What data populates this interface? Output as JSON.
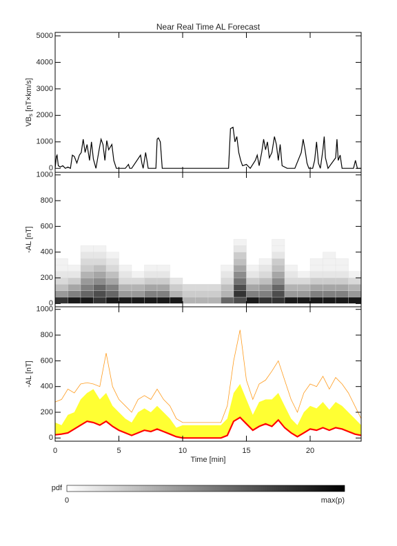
{
  "chart_data": [
    {
      "type": "line",
      "title": "Near Real Time AL Forecast",
      "ylabel": {
        "main": "VB",
        "sub": "s",
        "unit": " [nT×km/s]"
      },
      "xlim": [
        0,
        24
      ],
      "xticks": [
        0,
        5,
        10,
        15,
        20
      ],
      "ylim": [
        -150,
        5130
      ],
      "yticks": [
        0,
        1000,
        2000,
        3000,
        4000,
        5000
      ],
      "color": "#000000",
      "x": [
        0,
        0.1,
        0.15,
        0.25,
        0.4,
        0.6,
        0.8,
        1,
        1.2,
        1.35,
        1.5,
        1.7,
        1.9,
        2.05,
        2.2,
        2.35,
        2.5,
        2.7,
        2.85,
        3,
        3.2,
        3.45,
        3.6,
        3.75,
        3.9,
        4.05,
        4.2,
        4.45,
        4.6,
        4.8,
        5.5,
        5.75,
        5.85,
        6,
        6.7,
        6.8,
        6.9,
        7.1,
        7.2,
        7.3,
        7.9,
        8.0,
        8.1,
        8.25,
        8.4,
        13.6,
        13.75,
        13.95,
        14.1,
        14.25,
        14.4,
        14.55,
        14.7,
        15,
        15.3,
        15.7,
        15.85,
        16,
        16.2,
        16.35,
        16.5,
        16.65,
        16.8,
        17,
        17.2,
        17.35,
        17.5,
        17.65,
        17.8,
        18.2,
        18.8,
        19.3,
        19.45,
        19.6,
        19.75,
        19.9,
        20.2,
        20.35,
        20.5,
        20.65,
        20.8,
        21,
        21.1,
        21.2,
        21.4,
        22.0,
        22.1,
        22.2,
        22.35,
        22.5,
        23.4,
        23.55,
        23.7,
        24
      ],
      "values": [
        0,
        450,
        500,
        100,
        50,
        100,
        0,
        50,
        0,
        500,
        450,
        200,
        500,
        600,
        1100,
        600,
        900,
        300,
        1000,
        350,
        0,
        700,
        1100,
        900,
        300,
        1050,
        700,
        900,
        300,
        0,
        0,
        150,
        0,
        0,
        500,
        200,
        0,
        600,
        300,
        0,
        0,
        1100,
        1150,
        1000,
        0,
        0,
        1500,
        1550,
        1000,
        1200,
        600,
        300,
        100,
        150,
        0,
        300,
        500,
        100,
        600,
        1100,
        700,
        1000,
        400,
        600,
        1200,
        900,
        300,
        900,
        100,
        0,
        0,
        600,
        1100,
        700,
        200,
        0,
        0,
        300,
        1000,
        200,
        0,
        700,
        1200,
        400,
        0,
        400,
        1100,
        300,
        500,
        0,
        0,
        300,
        0,
        0
      ]
    },
    {
      "type": "heatmap",
      "ylabel": "-AL [nT]",
      "xlim": [
        0,
        24
      ],
      "xticks": [
        0,
        5,
        10,
        15,
        20
      ],
      "ylim": [
        -25,
        1020
      ],
      "yticks": [
        0,
        200,
        400,
        600,
        800,
        1000
      ],
      "x_bins": [
        0,
        1,
        2,
        3,
        4,
        5,
        6,
        7,
        8,
        9,
        10,
        11,
        12,
        13,
        14,
        15,
        16,
        17,
        18,
        19,
        20,
        21,
        22,
        23,
        24
      ],
      "y_bins": [
        0,
        50,
        100,
        150,
        200,
        250,
        300,
        350,
        400,
        450,
        500
      ],
      "pdf": [
        [
          0.8,
          0.9,
          0.9,
          0.8,
          0.9,
          0.9,
          0.9,
          0.9,
          0.9,
          0.9,
          0.3,
          0.3,
          0.3,
          0.6,
          0.7,
          0.9,
          0.8,
          0.8,
          0.9,
          0.9,
          0.9,
          0.9,
          0.9,
          0.9
        ],
        [
          0.4,
          0.5,
          0.6,
          0.7,
          0.6,
          0.4,
          0.4,
          0.5,
          0.5,
          0.3,
          0.2,
          0.2,
          0.2,
          0.3,
          0.8,
          0.5,
          0.5,
          0.7,
          0.4,
          0.4,
          0.5,
          0.5,
          0.5,
          0.4
        ],
        [
          0.25,
          0.35,
          0.5,
          0.6,
          0.5,
          0.3,
          0.3,
          0.35,
          0.35,
          0.2,
          0.15,
          0.15,
          0.15,
          0.25,
          0.7,
          0.35,
          0.4,
          0.6,
          0.3,
          0.3,
          0.35,
          0.35,
          0.35,
          0.3
        ],
        [
          0.15,
          0.2,
          0.4,
          0.45,
          0.35,
          0.15,
          0.15,
          0.2,
          0.2,
          0.1,
          0,
          0,
          0,
          0.15,
          0.55,
          0.2,
          0.25,
          0.45,
          0.15,
          0.15,
          0.2,
          0.2,
          0.2,
          0.15
        ],
        [
          0.1,
          0.1,
          0.3,
          0.35,
          0.25,
          0.1,
          0.05,
          0.1,
          0.1,
          0,
          0,
          0,
          0,
          0.1,
          0.45,
          0.1,
          0.15,
          0.35,
          0.1,
          0.05,
          0.1,
          0.1,
          0.1,
          0.05
        ],
        [
          0.05,
          0.05,
          0.2,
          0.25,
          0.15,
          0.05,
          0,
          0.05,
          0.05,
          0,
          0,
          0,
          0,
          0.05,
          0.35,
          0.05,
          0.1,
          0.25,
          0.05,
          0,
          0.05,
          0.05,
          0.05,
          0
        ],
        [
          0.05,
          0,
          0.15,
          0.15,
          0.1,
          0,
          0,
          0,
          0,
          0,
          0,
          0,
          0,
          0,
          0.25,
          0,
          0.05,
          0.2,
          0,
          0,
          0.05,
          0.05,
          0.05,
          0
        ],
        [
          0,
          0,
          0.1,
          0.1,
          0.05,
          0,
          0,
          0,
          0,
          0,
          0,
          0,
          0,
          0,
          0.2,
          0,
          0,
          0.1,
          0,
          0,
          0,
          0.05,
          0,
          0
        ],
        [
          0,
          0,
          0.05,
          0.05,
          0,
          0,
          0,
          0,
          0,
          0,
          0,
          0,
          0,
          0,
          0.1,
          0,
          0,
          0.05,
          0,
          0,
          0,
          0,
          0,
          0
        ],
        [
          0,
          0,
          0,
          0,
          0,
          0,
          0,
          0,
          0,
          0,
          0,
          0,
          0,
          0,
          0.05,
          0,
          0,
          0.05,
          0,
          0,
          0,
          0,
          0,
          0
        ]
      ]
    },
    {
      "type": "band",
      "ylabel": "-AL [nT]",
      "xlabel": "Time [min]",
      "xlim": [
        0,
        24
      ],
      "xticks": [
        0,
        5,
        10,
        15,
        20
      ],
      "ylim": [
        -25,
        1020
      ],
      "yticks": [
        0,
        200,
        400,
        600,
        800,
        1000
      ],
      "x": [
        0,
        0.5,
        1,
        1.5,
        2,
        2.5,
        3,
        3.5,
        4,
        4.5,
        5,
        5.5,
        6,
        6.5,
        7,
        7.5,
        8,
        8.5,
        9,
        9.5,
        10,
        10.5,
        11,
        11.5,
        12,
        12.5,
        13,
        13.5,
        14,
        14.5,
        15,
        15.5,
        16,
        16.5,
        17,
        17.5,
        18,
        18.5,
        19,
        19.5,
        20,
        20.5,
        21,
        21.5,
        22,
        22.5,
        23,
        23.5,
        24
      ],
      "envelope": {
        "color": "#ff9a1a",
        "values": [
          280,
          300,
          380,
          350,
          420,
          430,
          420,
          400,
          660,
          400,
          300,
          250,
          200,
          300,
          330,
          300,
          380,
          300,
          250,
          150,
          120,
          120,
          120,
          120,
          120,
          120,
          120,
          250,
          600,
          840,
          450,
          300,
          420,
          450,
          520,
          600,
          450,
          300,
          200,
          350,
          420,
          400,
          480,
          380,
          470,
          420,
          350,
          250,
          150
        ]
      },
      "band": {
        "color": "#ffff33",
        "values": [
          120,
          100,
          180,
          200,
          300,
          350,
          380,
          300,
          350,
          250,
          200,
          150,
          120,
          200,
          230,
          200,
          250,
          200,
          150,
          80,
          100,
          100,
          100,
          100,
          100,
          100,
          100,
          150,
          350,
          420,
          300,
          180,
          280,
          300,
          300,
          350,
          250,
          150,
          100,
          200,
          250,
          230,
          280,
          220,
          280,
          250,
          200,
          150,
          100
        ]
      },
      "median": {
        "color": "#ff0000",
        "values": [
          25,
          30,
          40,
          70,
          100,
          130,
          120,
          100,
          130,
          90,
          60,
          40,
          20,
          40,
          60,
          50,
          70,
          50,
          30,
          10,
          0,
          0,
          0,
          0,
          0,
          0,
          0,
          20,
          130,
          160,
          110,
          60,
          90,
          110,
          90,
          140,
          80,
          40,
          10,
          40,
          70,
          60,
          80,
          60,
          80,
          70,
          50,
          30,
          20
        ]
      }
    }
  ],
  "colorbar": {
    "label": "pdf",
    "min_label": "0",
    "max_label": "max(p)"
  }
}
